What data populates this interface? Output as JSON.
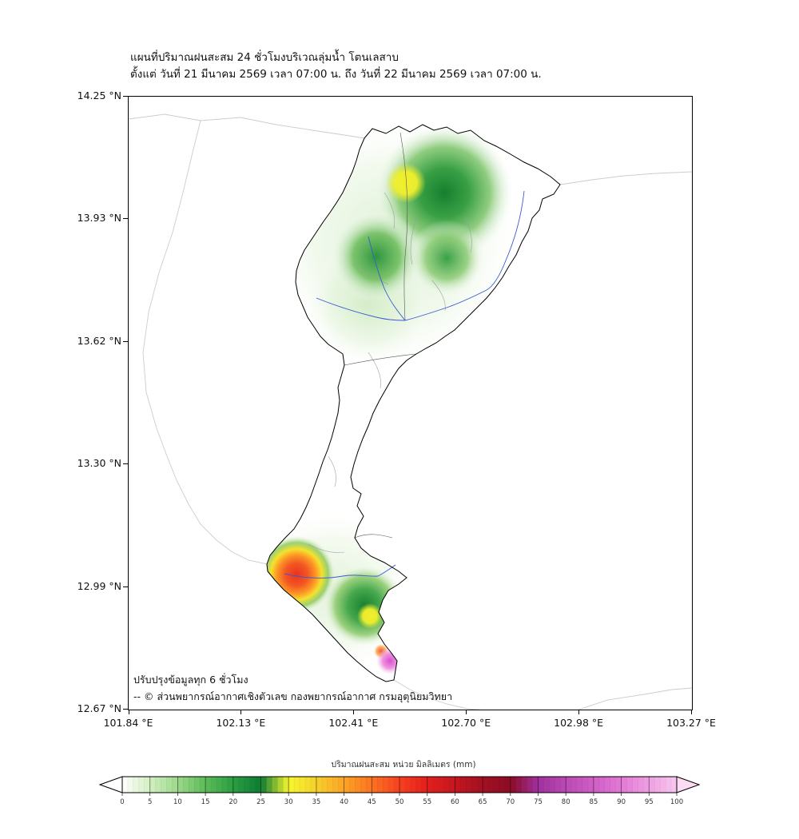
{
  "title": {
    "line1": "แผนที่ปริมาณฝนสะสม 24 ชั่วโมงบริเวณลุ่มน้ำ โตนเลสาบ",
    "line2": "ตั้งแต่ วันที่ 21 มีนาคม 2569 เวลา 07:00 น. ถึง วันที่ 22 มีนาคม 2569 เวลา 07:00 น."
  },
  "axes": {
    "lat_ticks": [
      "14.25 °N",
      "13.93 °N",
      "13.62 °N",
      "13.30 °N",
      "12.99 °N",
      "12.67 °N"
    ],
    "lon_ticks": [
      "101.84 °E",
      "102.13 °E",
      "102.41 °E",
      "102.70 °E",
      "102.98 °E",
      "103.27 °E"
    ]
  },
  "annotations": {
    "update": "ปรับปรุงข้อมูลทุก 6 ชั่วโมง",
    "credit": "-- © ส่วนพยากรณ์อากาศเชิงตัวเลข กองพยากรณ์อากาศ กรมอุตุนิยมวิทยา"
  },
  "colorbar": {
    "label": "ปริมาณฝนสะสม หน่วย มิลลิเมตร (mm)",
    "tick_values": [
      "0",
      "5",
      "10",
      "15",
      "20",
      "25",
      "30",
      "35",
      "40",
      "45",
      "50",
      "55",
      "60",
      "65",
      "70",
      "75",
      "80",
      "85",
      "90",
      "95",
      "100"
    ],
    "scale_colors": [
      "#ffffff",
      "#d3efc3",
      "#9bd88a",
      "#5cbc58",
      "#2b9e41",
      "#0c7c33",
      "#f6f62e",
      "#f6d12b",
      "#fda325",
      "#fb7322",
      "#f6411f",
      "#e31f1d",
      "#c5161f",
      "#a31022",
      "#8c0b24",
      "#a0309e",
      "#bb4ab4",
      "#d05ec6",
      "#e27ad6",
      "#efa0e2",
      "#f8c7ee"
    ],
    "arrow_left_color": "#ffffff",
    "arrow_right_color": "#fbdcf4"
  },
  "chart_data": {
    "type": "heatmap",
    "title": "แผนที่ปริมาณฝนสะสม 24 ชั่วโมงบริเวณลุ่มน้ำ โตนเลสาบ",
    "subtitle": "ตั้งแต่ วันที่ 21 มีนาคม 2569 เวลา 07:00 น. ถึง วันที่ 22 มีนาคม 2569 เวลา 07:00 น.",
    "lon_range_deg_e": [
      101.84,
      103.27
    ],
    "lat_range_deg_n": [
      12.67,
      14.25
    ],
    "unit": "mm",
    "scale_range": [
      0,
      100
    ],
    "rain_maxima": [
      {
        "area": "upper basin north (yellow core in green)",
        "approx_lon": 102.55,
        "approx_lat": 14.03,
        "peak_mm": 32
      },
      {
        "area": "upper basin center (green)",
        "approx_lon": 102.48,
        "approx_lat": 13.85,
        "peak_mm": 20
      },
      {
        "area": "lower basin west (red/orange cell)",
        "approx_lon": 102.26,
        "approx_lat": 13.01,
        "peak_mm": 52
      },
      {
        "area": "lower basin center (green with yellow core)",
        "approx_lon": 102.44,
        "approx_lat": 12.93,
        "peak_mm": 32
      },
      {
        "area": "southern tip (magenta spot)",
        "approx_lon": 102.5,
        "approx_lat": 12.79,
        "peak_mm": 90
      }
    ]
  }
}
